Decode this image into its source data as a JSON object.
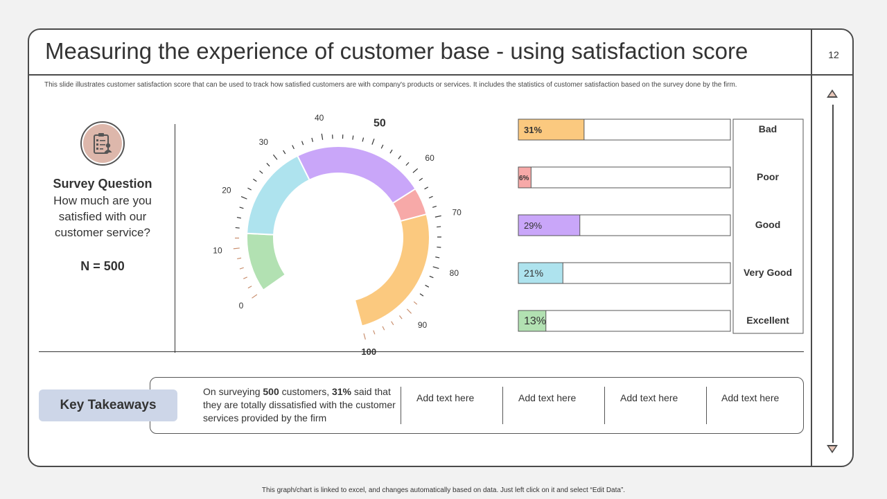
{
  "title": "Measuring the experience of customer base - using satisfaction score",
  "page_number": "12",
  "description": "This slide illustrates customer satisfaction score that can be used to track how satisfied customers are with company's products or services. It includes the statistics of customer satisfaction based on the survey done by the firm.",
  "survey": {
    "heading": "Survey Question",
    "question": "How much are you satisfied with our customer service?",
    "sample": "N = 500"
  },
  "chart_data": [
    {
      "type": "gauge",
      "title": "",
      "min": 0,
      "max": 100,
      "tick_labels": [
        "0",
        "10",
        "20",
        "30",
        "40",
        "50",
        "60",
        "70",
        "80",
        "90",
        "100"
      ],
      "segments": [
        {
          "name": "Bad",
          "value": 31,
          "color": "#fbc97f"
        },
        {
          "name": "Poor",
          "value": 6,
          "color": "#f7a9a8"
        },
        {
          "name": "Good",
          "value": 29,
          "color": "#c9a6f9"
        },
        {
          "name": "Very Good",
          "value": 21,
          "color": "#aee3ee"
        },
        {
          "name": "Excellent",
          "value": 13,
          "color": "#b2e1b2"
        }
      ]
    },
    {
      "type": "bar",
      "orientation": "horizontal",
      "categories": [
        "Bad",
        "Poor",
        "Good",
        "Very Good",
        "Excellent"
      ],
      "values": [
        31,
        6,
        29,
        21,
        13
      ],
      "labels": [
        "31%",
        "6%",
        "29%",
        "21%",
        "13%"
      ],
      "colors": [
        "#fbc97f",
        "#f7a9a8",
        "#c9a6f9",
        "#aee3ee",
        "#b2e1b2"
      ],
      "xlim": [
        0,
        100
      ]
    }
  ],
  "takeaways": {
    "label": "Key Takeaways",
    "main_prefix": "On surveying ",
    "main_n": "500",
    "main_mid": " customers, ",
    "main_pct": "31%",
    "main_suffix": " said that they are totally dissatisfied with the customer services provided by the firm",
    "cells": [
      "Add text here",
      "Add text here",
      "Add text here",
      "Add text here"
    ]
  },
  "footer": "This graph/chart is linked to excel, and changes automatically based on data. Just left click on it and select “Edit Data”."
}
